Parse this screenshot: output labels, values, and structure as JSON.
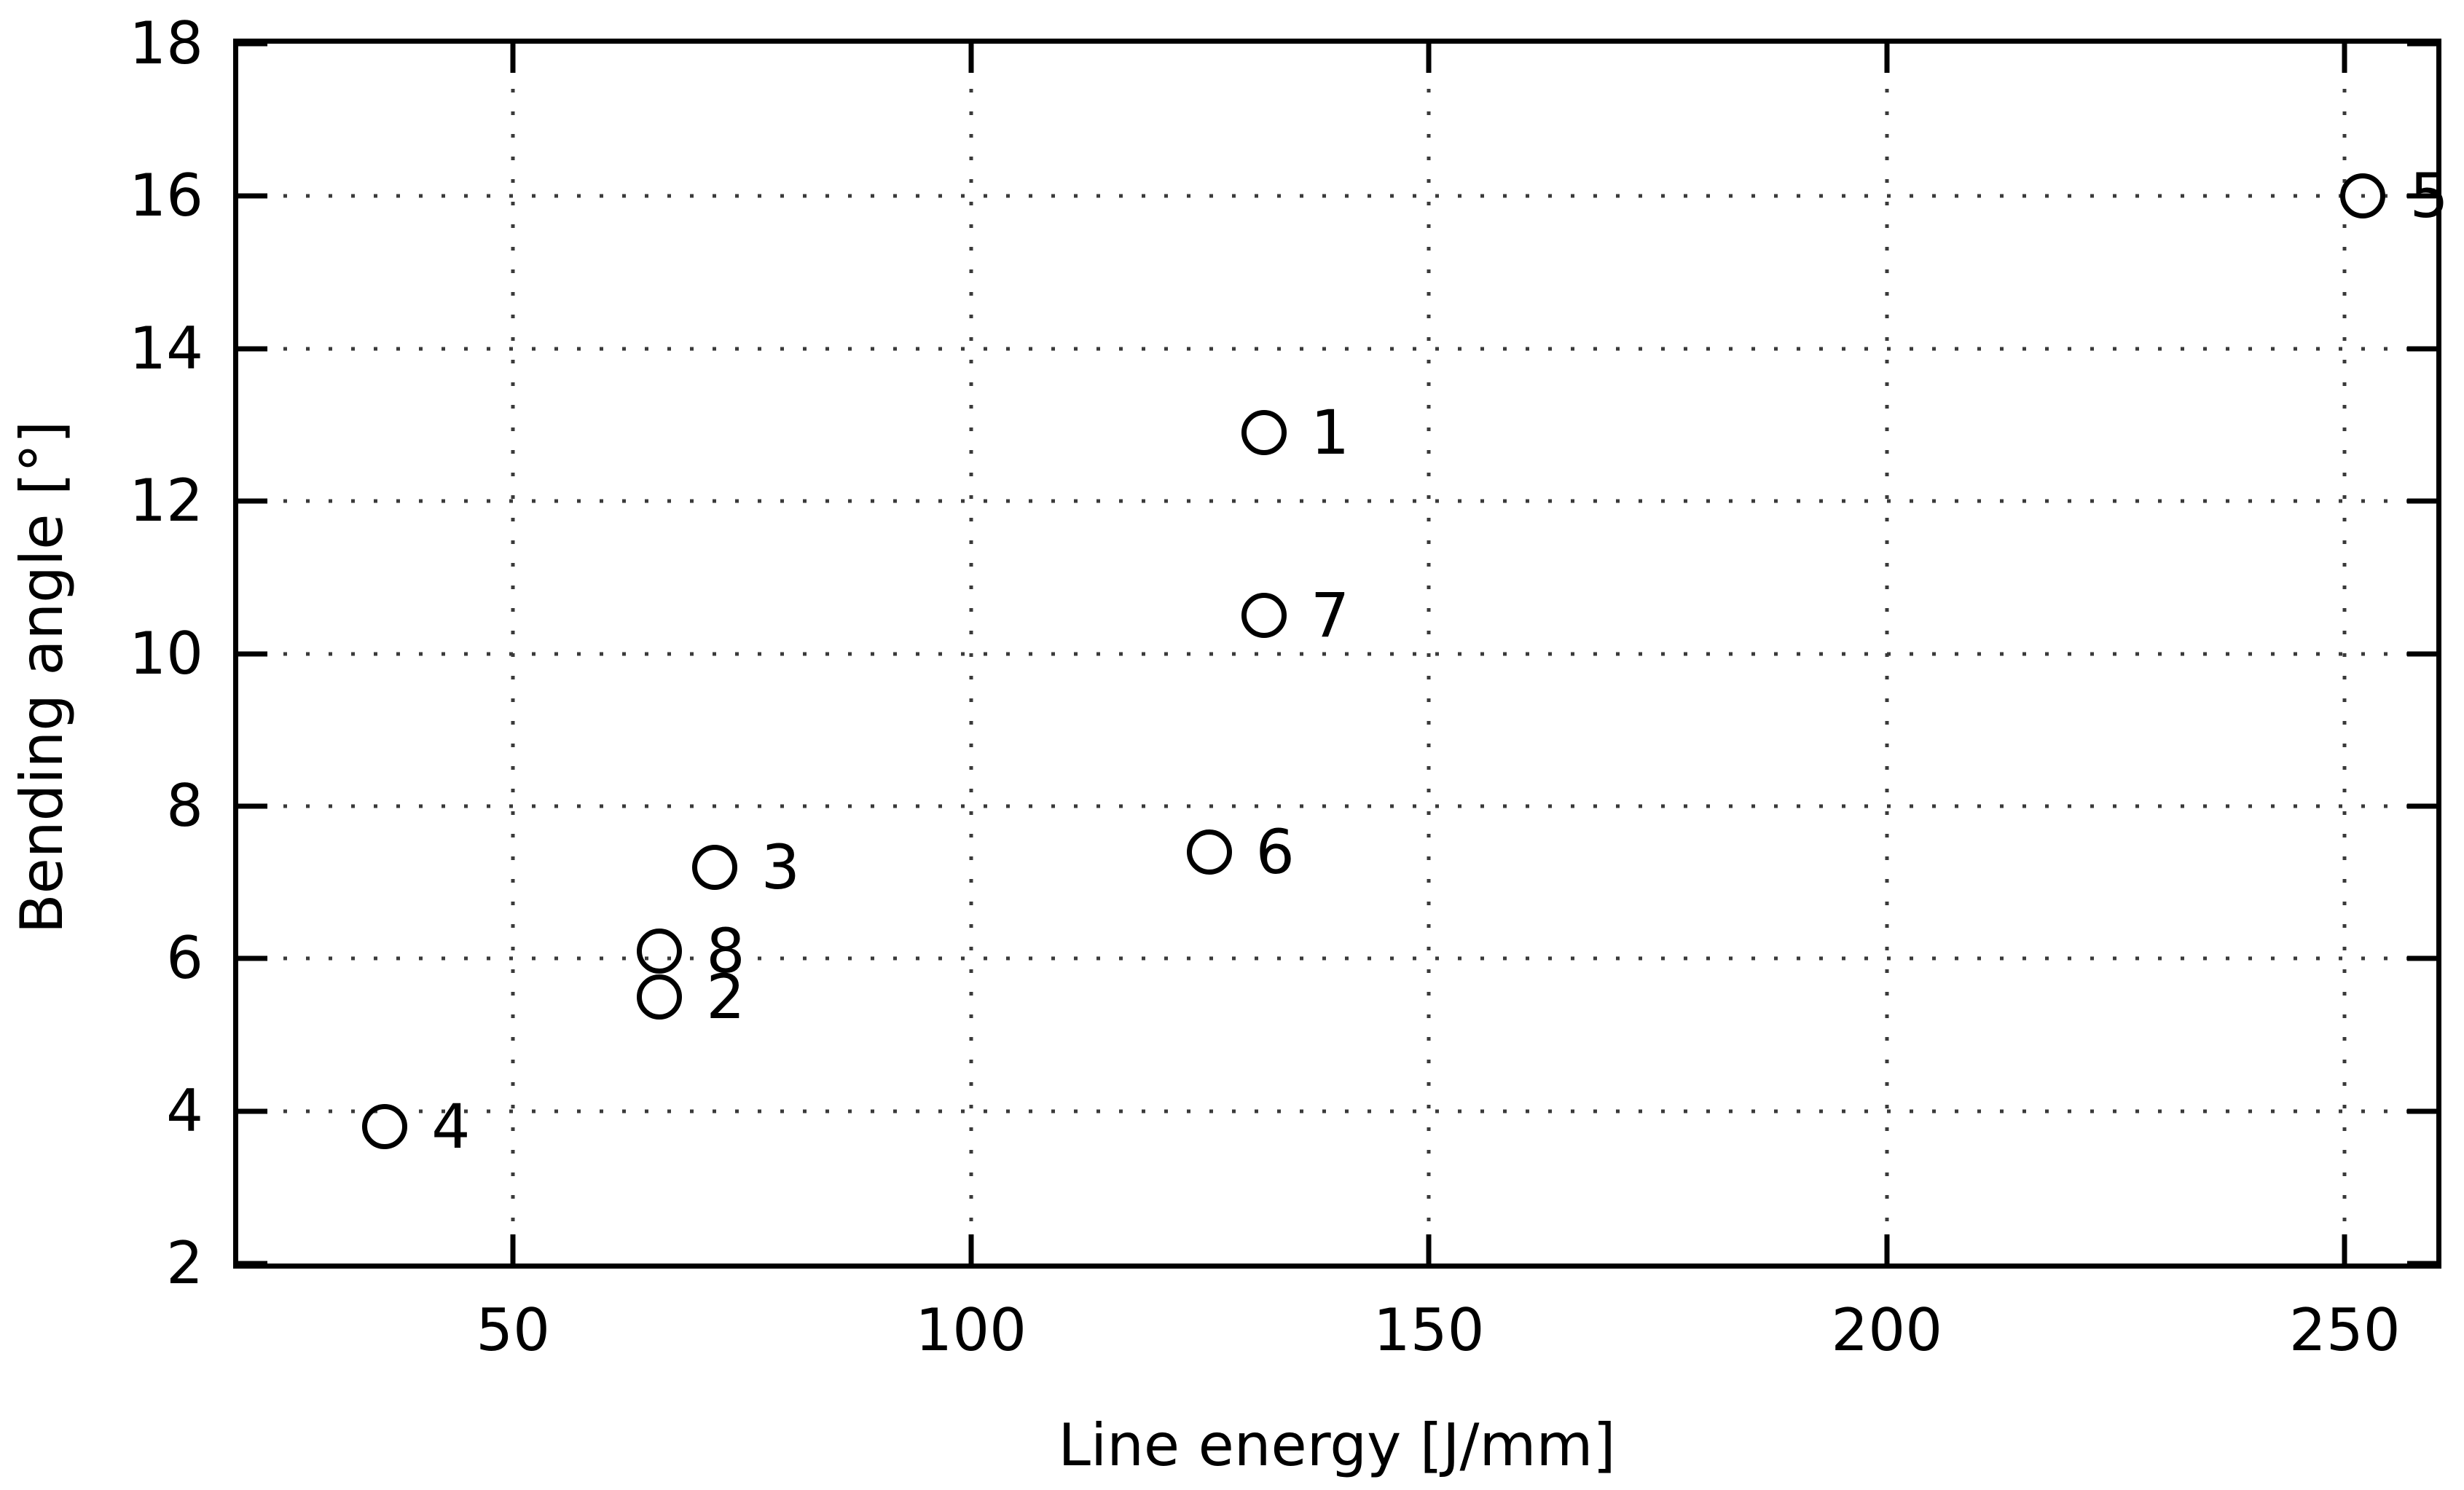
{
  "figure": {
    "background": "#ffffff",
    "axis_color": "#000000",
    "grid_color": "#3a3a3a"
  },
  "chart_data": {
    "type": "scatter",
    "title": "",
    "xlabel": "Line energy [J/mm]",
    "ylabel": "Bending angle [°]",
    "xlim": [
      20,
      260
    ],
    "ylim": [
      2,
      18
    ],
    "x_ticks": [
      50,
      100,
      150,
      200,
      250
    ],
    "y_ticks": [
      2,
      4,
      6,
      8,
      10,
      12,
      14,
      16,
      18
    ],
    "grid": "dotted",
    "legend": "none",
    "marker": "open-circle",
    "marker_color": "#000000",
    "points": [
      {
        "label": "1",
        "x": 132,
        "y": 12.9
      },
      {
        "label": "2",
        "x": 66,
        "y": 5.5
      },
      {
        "label": "3",
        "x": 72,
        "y": 7.2
      },
      {
        "label": "4",
        "x": 36,
        "y": 3.8
      },
      {
        "label": "5",
        "x": 252,
        "y": 16.0
      },
      {
        "label": "6",
        "x": 126,
        "y": 7.4
      },
      {
        "label": "7",
        "x": 132,
        "y": 10.5
      },
      {
        "label": "8",
        "x": 66,
        "y": 6.1
      }
    ]
  }
}
